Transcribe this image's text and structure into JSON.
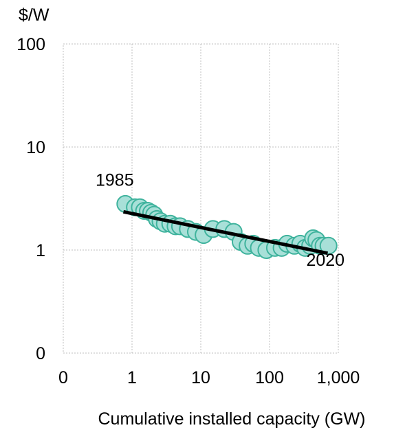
{
  "chart_data": {
    "type": "scatter",
    "xlabel": "Cumulative installed capacity (GW)",
    "ylabel": "$/W",
    "x_scale": "log",
    "y_scale": "log",
    "x_ticks": [
      0.1,
      1,
      10,
      100,
      1000
    ],
    "x_tick_labels": [
      "0",
      "1",
      "10",
      "100",
      "1,000"
    ],
    "y_ticks": [
      0.1,
      1,
      10,
      100
    ],
    "y_tick_labels": [
      "0",
      "1",
      "10",
      "100"
    ],
    "xlim": [
      0.1,
      1000
    ],
    "ylim": [
      0.1,
      100
    ],
    "grid": true,
    "marker_color": "#a8e0d8",
    "marker_edge_color": "#3fb39d",
    "trend_color": "#000000",
    "points": [
      {
        "x": 0.8,
        "y": 2.8
      },
      {
        "x": 1.1,
        "y": 2.6
      },
      {
        "x": 1.3,
        "y": 2.6
      },
      {
        "x": 1.5,
        "y": 2.4
      },
      {
        "x": 1.7,
        "y": 2.4
      },
      {
        "x": 1.9,
        "y": 2.3
      },
      {
        "x": 2.1,
        "y": 2.2
      },
      {
        "x": 2.3,
        "y": 2.0
      },
      {
        "x": 2.6,
        "y": 1.9
      },
      {
        "x": 3.0,
        "y": 1.8
      },
      {
        "x": 3.6,
        "y": 1.8
      },
      {
        "x": 4.3,
        "y": 1.7
      },
      {
        "x": 5.0,
        "y": 1.7
      },
      {
        "x": 6.5,
        "y": 1.6
      },
      {
        "x": 8.5,
        "y": 1.5
      },
      {
        "x": 11,
        "y": 1.4
      },
      {
        "x": 15,
        "y": 1.6
      },
      {
        "x": 22,
        "y": 1.6
      },
      {
        "x": 30,
        "y": 1.5
      },
      {
        "x": 38,
        "y": 1.2
      },
      {
        "x": 48,
        "y": 1.1
      },
      {
        "x": 58,
        "y": 1.15
      },
      {
        "x": 70,
        "y": 1.05
      },
      {
        "x": 90,
        "y": 1.0
      },
      {
        "x": 120,
        "y": 1.05
      },
      {
        "x": 150,
        "y": 1.05
      },
      {
        "x": 180,
        "y": 1.15
      },
      {
        "x": 230,
        "y": 1.1
      },
      {
        "x": 280,
        "y": 1.15
      },
      {
        "x": 330,
        "y": 1.05
      },
      {
        "x": 390,
        "y": 1.1
      },
      {
        "x": 430,
        "y": 1.3
      },
      {
        "x": 480,
        "y": 1.25
      },
      {
        "x": 540,
        "y": 1.1
      },
      {
        "x": 610,
        "y": 1.1
      },
      {
        "x": 720,
        "y": 1.1
      }
    ],
    "trend_line": {
      "x": [
        0.75,
        700
      ],
      "y": [
        2.35,
        0.93
      ]
    },
    "annotations": [
      {
        "text": "1985",
        "x": 0.56,
        "y": 4.2
      },
      {
        "text": "2020",
        "x": 650,
        "y": 0.7
      }
    ]
  }
}
